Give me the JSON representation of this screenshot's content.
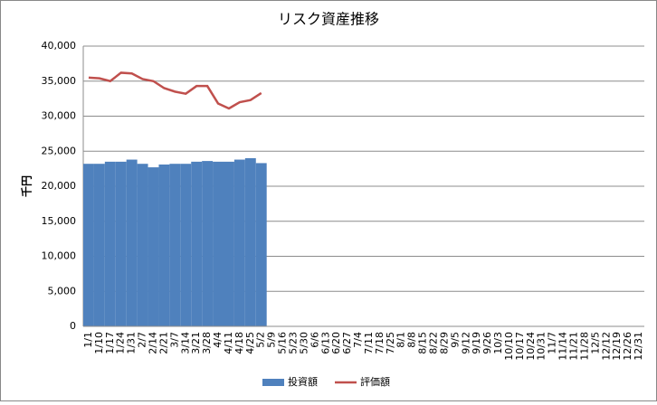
{
  "chart_data": {
    "type": "bar_line",
    "title": "リスク資産推移",
    "y_label": "千円",
    "categories": [
      "1/1",
      "1/10",
      "1/17",
      "1/24",
      "1/31",
      "2/7",
      "2/14",
      "2/21",
      "3/7",
      "3/14",
      "3/21",
      "3/28",
      "4/4",
      "4/11",
      "4/18",
      "4/25",
      "5/2",
      "5/9",
      "5/16",
      "5/23",
      "5/30",
      "6/6",
      "6/13",
      "6/20",
      "6/27",
      "7/4",
      "7/11",
      "7/18",
      "7/25",
      "8/1",
      "8/8",
      "8/15",
      "8/22",
      "8/29",
      "9/5",
      "9/12",
      "9/19",
      "9/26",
      "10/3",
      "10/10",
      "10/17",
      "10/24",
      "10/31",
      "11/7",
      "11/14",
      "11/21",
      "11/28",
      "12/5",
      "12/12",
      "12/19",
      "12/26",
      "12/31"
    ],
    "series": [
      {
        "name": "投資額",
        "kind": "bar",
        "color": "#4f81bd",
        "values": [
          23200,
          23200,
          23500,
          23500,
          23800,
          23200,
          22700,
          23100,
          23200,
          23200,
          23500,
          23600,
          23500,
          23500,
          23800,
          24000,
          23300,
          null,
          null,
          null,
          null,
          null,
          null,
          null,
          null,
          null,
          null,
          null,
          null,
          null,
          null,
          null,
          null,
          null,
          null,
          null,
          null,
          null,
          null,
          null,
          null,
          null,
          null,
          null,
          null,
          null,
          null,
          null,
          null,
          null,
          null,
          null
        ]
      },
      {
        "name": "評価額",
        "kind": "line",
        "color": "#c0504d",
        "values": [
          35500,
          35400,
          35000,
          36200,
          36100,
          35300,
          35000,
          34000,
          33500,
          33200,
          34300,
          34300,
          31800,
          31100,
          32000,
          32300,
          33300,
          null,
          null,
          null,
          null,
          null,
          null,
          null,
          null,
          null,
          null,
          null,
          null,
          null,
          null,
          null,
          null,
          null,
          null,
          null,
          null,
          null,
          null,
          null,
          null,
          null,
          null,
          null,
          null,
          null,
          null,
          null,
          null,
          null,
          null,
          null
        ]
      }
    ],
    "ylim": [
      0,
      40000
    ],
    "yticks": [
      0,
      {
        "value": 5000,
        "label": "5,000"
      },
      {
        "value": 10000,
        "label": "10,000"
      },
      {
        "value": 15000,
        "label": "15,000"
      },
      {
        "value": 20000,
        "label": "20,000"
      },
      {
        "value": 25000,
        "label": "25,000"
      },
      {
        "value": 30000,
        "label": "30,000"
      },
      {
        "value": 35000,
        "label": "35,000"
      },
      {
        "value": 40000,
        "label": "40,000"
      }
    ],
    "grid": true,
    "legend": "bottom"
  }
}
